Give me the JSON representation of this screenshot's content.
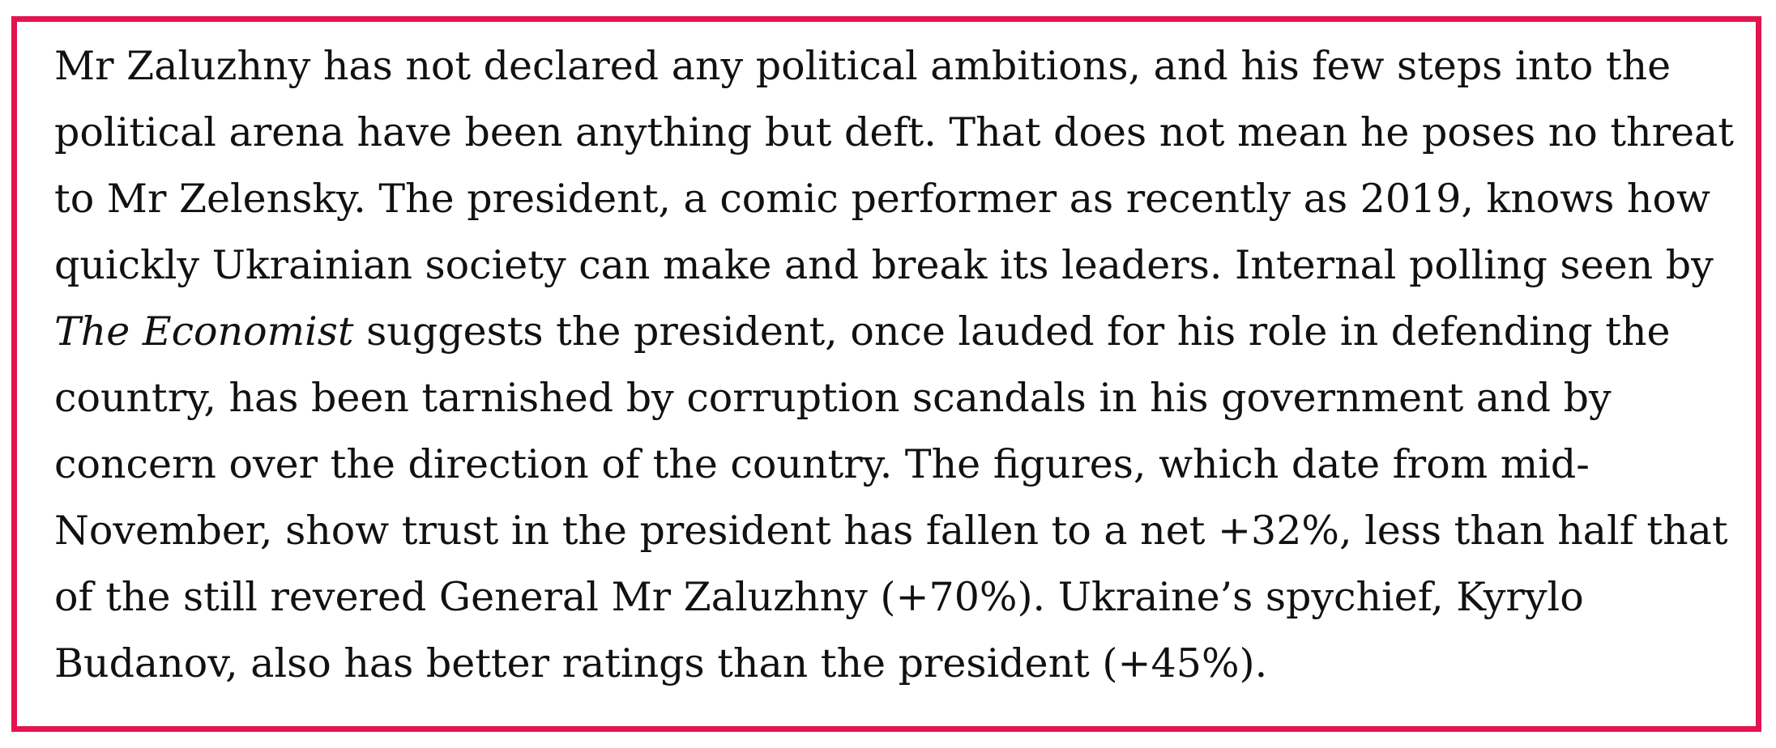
{
  "article": {
    "line1": "Mr Zaluzhny has not declared any political ambitions, and his few steps into the",
    "line2": "political arena have been anything but deft. That does not mean he poses no threat",
    "line3": "to Mr Zelensky. The president, a comic performer as recently as 2019, knows how",
    "line4": "quickly Ukrainian society can make and break its leaders. Internal polling seen by",
    "line5_italic": "The Economist",
    "line5_rest": " suggests the president, once lauded for his role in defending the",
    "line6": "country, has been tarnished by corruption scandals in his government and by",
    "line7": "concern over the direction of the country. The figures, which date from mid-",
    "line8": "November, show trust in the president has fallen to a net +32%, less than half that",
    "line9": "of the still revered General Mr Zaluzhny (+70%). Ukraine’s spychief, Kyrylo",
    "line10": "Budanov, also has better ratings than the president (+45%)."
  },
  "colors": {
    "frame_border": "#e3144f",
    "text": "#111111",
    "background": "#ffffff"
  }
}
